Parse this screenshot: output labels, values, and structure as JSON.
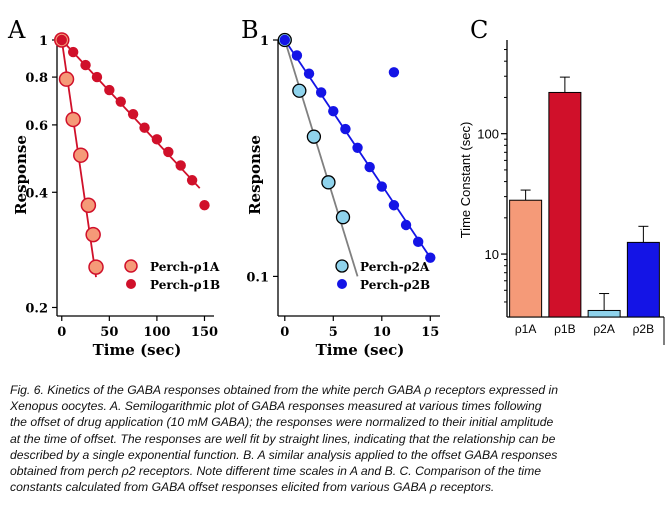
{
  "colors": {
    "red": "#d0102a",
    "salmon": "#f59a78",
    "blue": "#1414e6",
    "lightblue": "#8fd3ec",
    "gray": "#808080"
  },
  "chart_data": [
    {
      "panel": "A",
      "type": "scatter",
      "xlabel": "Time (sec)",
      "ylabel": "Response",
      "xscale": "linear",
      "yscale": "log",
      "xlim": [
        -5,
        160
      ],
      "ylim": [
        0.19,
        1.0
      ],
      "xticks": [
        0,
        50,
        100,
        150
      ],
      "yticks": [
        {
          "value": 1,
          "label": "1"
        },
        {
          "value": 0.8,
          "label": "0.8"
        },
        {
          "value": 0.6,
          "label": "0.6"
        },
        {
          "value": 0.4,
          "label": "0.4"
        },
        {
          "value": 0.2,
          "label": "0.2"
        }
      ],
      "legend": "bottom-right",
      "series": [
        {
          "name": "Perch-ρ1A",
          "style": "open",
          "x": [
            0,
            5,
            12,
            20,
            28,
            33,
            36
          ],
          "y": [
            1.0,
            0.79,
            0.62,
            0.5,
            0.37,
            0.31,
            0.255
          ],
          "fit": [
            [
              0,
              1.0
            ],
            [
              36,
              0.24
            ]
          ]
        },
        {
          "name": "Perch-ρ1B",
          "style": "filled",
          "x": [
            0,
            12,
            25,
            37,
            50,
            62,
            75,
            87,
            100,
            112,
            125,
            137,
            150
          ],
          "y": [
            1.0,
            0.93,
            0.86,
            0.8,
            0.74,
            0.69,
            0.64,
            0.59,
            0.55,
            0.51,
            0.47,
            0.43,
            0.37
          ],
          "fit": [
            [
              0,
              1.0
            ],
            [
              145,
              0.41
            ]
          ]
        }
      ]
    },
    {
      "panel": "B",
      "type": "scatter",
      "xlabel": "Time (sec)",
      "ylabel": "Response",
      "xscale": "linear",
      "yscale": "log",
      "xlim": [
        -0.7,
        16
      ],
      "ylim": [
        0.068,
        1.0
      ],
      "xticks": [
        0,
        5,
        10,
        15
      ],
      "yticks": [
        {
          "value": 1,
          "label": "1"
        },
        {
          "value": 0.1,
          "label": "0.1"
        }
      ],
      "legend": "bottom-right",
      "series": [
        {
          "name": "Perch-ρ2A",
          "style": "open",
          "x": [
            0,
            1.5,
            3,
            4.5,
            6
          ],
          "y": [
            1.0,
            0.61,
            0.39,
            0.25,
            0.178
          ],
          "fit": [
            [
              0,
              1.0
            ],
            [
              7.5,
              0.1
            ]
          ]
        },
        {
          "name": "Perch-ρ2B",
          "style": "filled",
          "x": [
            0,
            1.25,
            2.5,
            3.75,
            5,
            6.25,
            7.5,
            8.75,
            10,
            11.25,
            12.5,
            13.75,
            15
          ],
          "y": [
            1.0,
            0.86,
            0.72,
            0.6,
            0.5,
            0.42,
            0.35,
            0.29,
            0.24,
            0.2,
            0.165,
            0.14,
            0.12
          ],
          "outlier": {
            "x": 11.25,
            "y": 0.73
          },
          "fit": [
            [
              0,
              1.0
            ],
            [
              15,
              0.12
            ]
          ]
        }
      ]
    },
    {
      "panel": "C",
      "type": "bar",
      "ylabel": "Time Constant (sec)",
      "yscale": "log",
      "ylim": [
        3.0,
        600
      ],
      "yticks": [
        {
          "value": 10,
          "label": "10"
        },
        {
          "value": 100,
          "label": "100"
        }
      ],
      "categories": [
        "ρ1A",
        "ρ1B",
        "ρ2A",
        "ρ2B"
      ],
      "values": [
        28,
        220,
        3.4,
        12.5
      ],
      "errors": [
        6,
        75,
        1.3,
        4.5
      ],
      "bar_colors": [
        "#f59a78",
        "#d0102a",
        "#8fd3ec",
        "#1414e6"
      ]
    }
  ],
  "caption_lines": [
    "Fig. 6. Kinetics of the GABA responses obtained from the white perch GABA ρ receptors expressed in",
    "Xenopus oocytes. A. Semilogarithmic plot of GABA responses measured at various times following",
    "the offset of drug application (10 mM GABA); the responses were normalized to their initial amplitude",
    "at the time of offset. The responses are well fit by straight lines, indicating that the relationship can be",
    "described by a single exponential function. B. A similar analysis applied to the offset GABA responses",
    " obtained from perch ρ2 receptors. Note different time scales in A and B. C. Comparison of the time",
    "constants calculated from GABA offset responses elicited from various GABA ρ receptors."
  ]
}
